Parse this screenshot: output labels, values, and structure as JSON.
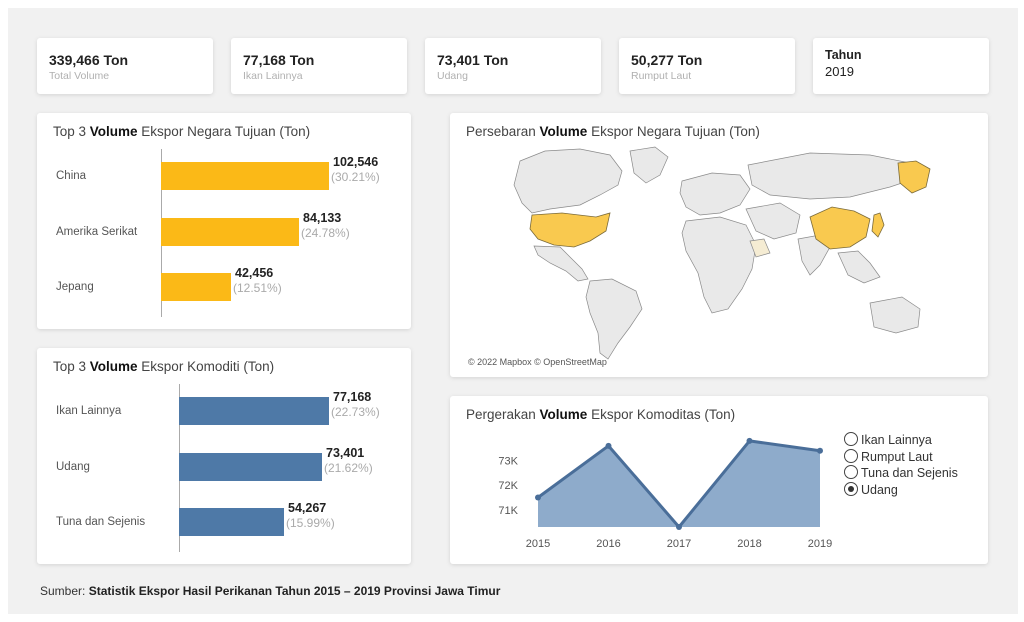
{
  "kpis": [
    {
      "value": "339,466 Ton",
      "label": "Total Volume"
    },
    {
      "value": "77,168 Ton",
      "label": "Ikan Lainnya"
    },
    {
      "value": "73,401 Ton",
      "label": "Udang"
    },
    {
      "value": "50,277 Ton",
      "label": "Rumput Laut"
    }
  ],
  "year_filter": {
    "title": "Tahun",
    "value": "2019"
  },
  "destinations": {
    "title_pre": "Top 3 ",
    "title_bold": "Volume",
    "title_post": " Ekspor Negara Tujuan (Ton)"
  },
  "commodities": {
    "title_pre": "Top 3 ",
    "title_bold": "Volume",
    "title_post": " Ekspor Komoditi (Ton)"
  },
  "map": {
    "title_pre": "Persebaran ",
    "title_bold": "Volume",
    "title_post": " Ekspor Negara Tujuan (Ton)",
    "attribution": "© 2022 Mapbox © OpenStreetMap",
    "highlight_color": "#f9c94f"
  },
  "trend": {
    "title_pre": "Pergerakan ",
    "title_bold": "Volume",
    "title_post": " Ekspor Komoditas (Ton)"
  },
  "source": {
    "prefix": "Sumber: ",
    "text": "Statistik Ekspor Hasil Perikanan Tahun 2015 – 2019 Provinsi Jawa Timur"
  },
  "chart_data": [
    {
      "type": "bar",
      "orientation": "horizontal",
      "title": "Top 3 Volume Ekspor Negara Tujuan (Ton)",
      "categories": [
        "China",
        "Amerika Serikat",
        "Jepang"
      ],
      "values": [
        102546,
        84133,
        42456
      ],
      "value_labels": [
        "102,546",
        "84,133",
        "42,456"
      ],
      "percent_labels": [
        "(30.21%)",
        "(24.78%)",
        "(12.51%)"
      ],
      "color": "#fbb917"
    },
    {
      "type": "bar",
      "orientation": "horizontal",
      "title": "Top 3 Volume Ekspor Komoditi (Ton)",
      "categories": [
        "Ikan Lainnya",
        "Udang",
        "Tuna dan Sejenis"
      ],
      "values": [
        77168,
        73401,
        54267
      ],
      "value_labels": [
        "77,168",
        "73,401",
        "54,267"
      ],
      "percent_labels": [
        "(22.73%)",
        "(21.62%)",
        "(15.99%)"
      ],
      "color": "#4e79a7"
    },
    {
      "type": "area",
      "title": "Pergerakan Volume Ekspor Komoditas (Ton)",
      "x": [
        "2015",
        "2016",
        "2017",
        "2018",
        "2019"
      ],
      "series": [
        {
          "name": "Udang",
          "values": [
            71500,
            73600,
            70300,
            73800,
            73401
          ]
        }
      ],
      "ylim": [
        70300,
        74000
      ],
      "yticks": [
        71000,
        72000,
        73000
      ],
      "ytick_labels": [
        "71K",
        "72K",
        "73K"
      ],
      "legend": [
        "Ikan Lainnya",
        "Rumput Laut",
        "Tuna dan Sejenis",
        "Udang"
      ],
      "legend_selected": "Udang",
      "fill_color": "#8eabcb",
      "line_color": "#4a6e99"
    }
  ]
}
